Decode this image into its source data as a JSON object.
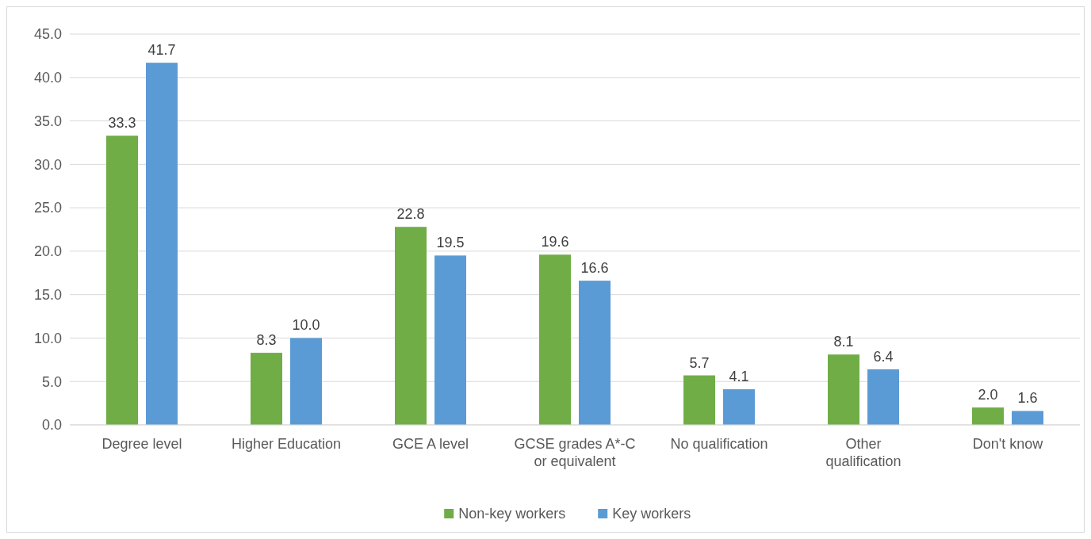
{
  "chart_data": {
    "type": "bar",
    "categories": [
      "Degree level",
      "Higher Education",
      "GCE A level",
      "GCSE grades A*-C\nor equivalent",
      "No qualification",
      "Other\nqualification",
      "Don't know"
    ],
    "series": [
      {
        "name": "Non-key workers",
        "color": "#70ad47",
        "values": [
          33.3,
          8.3,
          22.8,
          19.6,
          5.7,
          8.1,
          2.0
        ]
      },
      {
        "name": "Key workers",
        "color": "#5b9bd5",
        "values": [
          41.7,
          10.0,
          19.5,
          16.6,
          4.1,
          6.4,
          1.6
        ]
      }
    ],
    "ylim": [
      0,
      45
    ],
    "yticks": [
      {
        "value": 0,
        "label": "0.0"
      },
      {
        "value": 5,
        "label": "5.0"
      },
      {
        "value": 10,
        "label": "10.0"
      },
      {
        "value": 15,
        "label": "15.0"
      },
      {
        "value": 20,
        "label": "20.0"
      },
      {
        "value": 25,
        "label": "25.0"
      },
      {
        "value": 30,
        "label": "30.0"
      },
      {
        "value": 35,
        "label": "35.0"
      },
      {
        "value": 40,
        "label": "40.0"
      },
      {
        "value": 45,
        "label": "45.0"
      }
    ],
    "value_labels": [
      [
        "33.3",
        "8.3",
        "22.8",
        "19.6",
        "5.7",
        "8.1",
        "2.0"
      ],
      [
        "41.7",
        "10.0",
        "19.5",
        "16.6",
        "4.1",
        "6.4",
        "1.6"
      ]
    ],
    "grid": "y",
    "legend": "bottom"
  }
}
